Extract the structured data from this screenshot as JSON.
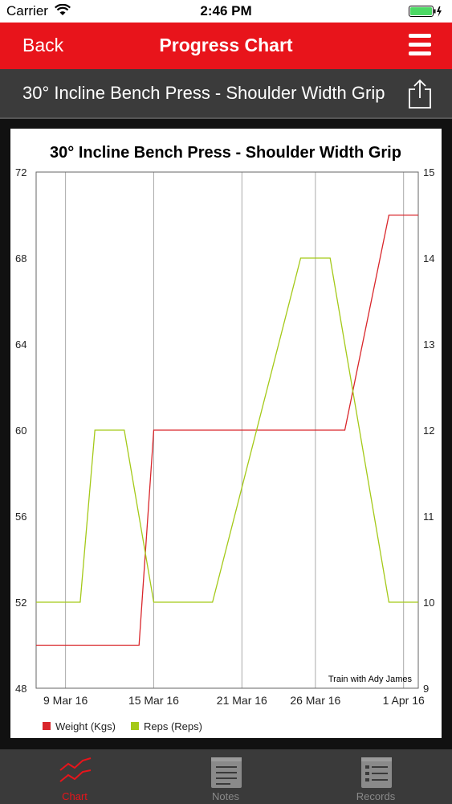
{
  "status_bar": {
    "carrier": "Carrier",
    "time": "2:46 PM"
  },
  "nav": {
    "back_label": "Back",
    "title": "Progress Chart"
  },
  "exercise": {
    "name": "30° Incline Bench Press - Shoulder Width Grip"
  },
  "chart_data": {
    "type": "line",
    "title": "30° Incline Bench Press - Shoulder Width Grip",
    "watermark": "Train with Ady James",
    "x_ticks": [
      "9 Mar 16",
      "15 Mar 16",
      "21 Mar 16",
      "26 Mar 16",
      "1 Apr 16"
    ],
    "x_tick_dates": [
      "2016-03-09",
      "2016-03-15",
      "2016-03-21",
      "2016-03-26",
      "2016-04-01"
    ],
    "xlim": [
      "2016-03-07",
      "2016-04-02"
    ],
    "y_left": {
      "ticks": [
        "72",
        "68",
        "64",
        "60",
        "56",
        "52",
        "48"
      ],
      "ylim": [
        48,
        72
      ]
    },
    "y_right": {
      "ticks": [
        "15",
        "14",
        "13",
        "12",
        "11",
        "10",
        "9"
      ],
      "ylim": [
        9,
        15
      ]
    },
    "grid": true,
    "legend_position": "bottom",
    "series": [
      {
        "name": "Weight (Kgs)",
        "axis": "left",
        "color": "#d9262b",
        "points": [
          {
            "x": "2016-03-07",
            "y": 50
          },
          {
            "x": "2016-03-14",
            "y": 50
          },
          {
            "x": "2016-03-15",
            "y": 60
          },
          {
            "x": "2016-03-28",
            "y": 60
          },
          {
            "x": "2016-03-31",
            "y": 70
          },
          {
            "x": "2016-04-02",
            "y": 70
          }
        ]
      },
      {
        "name": "Reps (Reps)",
        "axis": "right",
        "color": "#a4c918",
        "points": [
          {
            "x": "2016-03-07",
            "y": 10
          },
          {
            "x": "2016-03-10",
            "y": 10
          },
          {
            "x": "2016-03-11",
            "y": 12
          },
          {
            "x": "2016-03-13",
            "y": 12
          },
          {
            "x": "2016-03-15",
            "y": 10
          },
          {
            "x": "2016-03-19",
            "y": 10
          },
          {
            "x": "2016-03-25",
            "y": 14
          },
          {
            "x": "2016-03-27",
            "y": 14
          },
          {
            "x": "2016-03-31",
            "y": 10
          },
          {
            "x": "2016-04-02",
            "y": 10
          }
        ]
      }
    ]
  },
  "tabs": [
    {
      "label": "Chart",
      "icon": "chart-icon",
      "active": true
    },
    {
      "label": "Notes",
      "icon": "notes-icon",
      "active": false
    },
    {
      "label": "Records",
      "icon": "records-icon",
      "active": false
    }
  ]
}
